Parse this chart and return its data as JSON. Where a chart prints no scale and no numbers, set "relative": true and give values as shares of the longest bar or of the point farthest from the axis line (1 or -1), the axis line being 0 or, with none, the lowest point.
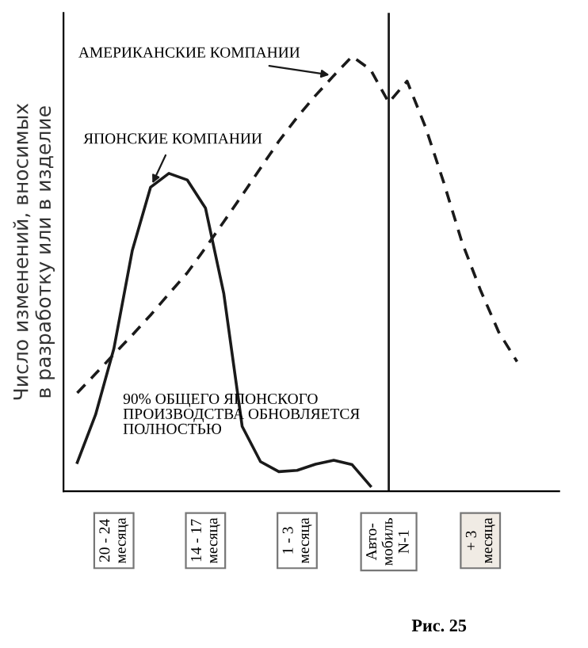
{
  "chart_data": {
    "type": "line",
    "relative": true,
    "ylabel": "Число изменений, вносимых\nв разработку или в изделие",
    "categories": [
      null,
      null,
      "20 - 24\nмесяца",
      null,
      null,
      null,
      null,
      "14 - 17\nмесяца",
      null,
      null,
      null,
      null,
      "1 - 3\nмесяца",
      null,
      null,
      null,
      null,
      "Авто-\nмобиль\nN-1",
      null,
      null,
      null,
      null,
      "+ 3\nмесяца",
      null,
      null
    ],
    "series": [
      {
        "name": "ЯПОНСКИЕ КОМПАНИИ",
        "color": "#1a1a1a",
        "line_style": "solid",
        "values": [
          0.066,
          0.176,
          0.328,
          0.553,
          0.699,
          0.731,
          0.716,
          0.651,
          0.454,
          0.149,
          0.068,
          0.045,
          0.048,
          0.062,
          0.071,
          0.061,
          0.012,
          null,
          null,
          null,
          null,
          null,
          null,
          null,
          null
        ]
      },
      {
        "name": "АМЕРИКАНСКИЕ КОМПАНИИ",
        "color": "#1a1a1a",
        "line_style": "dashed",
        "values": [
          0.226,
          0.27,
          0.315,
          0.359,
          0.405,
          0.454,
          0.502,
          0.56,
          0.62,
          0.681,
          0.743,
          0.805,
          0.86,
          0.91,
          0.956,
          1.0,
          0.97,
          0.894,
          0.943,
          0.838,
          0.71,
          0.572,
          0.463,
          0.366,
          0.298
        ]
      }
    ],
    "ref_lines": [
      {
        "axis": "x",
        "value": "Авто-\nмобиль\nN-1",
        "label": null,
        "color": "#1a1a1a"
      }
    ],
    "annotations": [
      "90% ОБЩЕГО ЯПОНСКОГО\nПРОИЗВОДСТВА ОБНОВЛЯЕТСЯ\nПОЛНОСТЬЮ",
      "Рис. 25"
    ],
    "grid": false,
    "legend": false,
    "marker": "none"
  }
}
